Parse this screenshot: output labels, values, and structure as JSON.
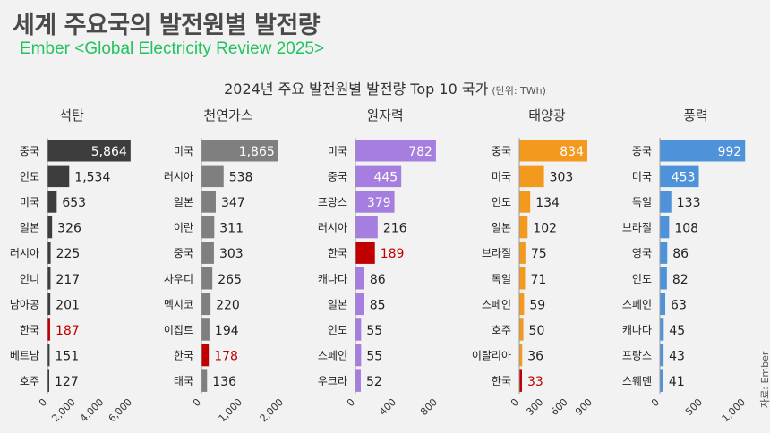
{
  "header": {
    "title": "세계 주요국의 발전원별 발전량",
    "subtitle": "Ember <Global Electricity Review 2025>",
    "chart_title": "2024년 주요 발전원별 발전량 Top 10 국가",
    "unit": "(단위: TWh)",
    "source": "자료: Ember"
  },
  "colors": {
    "coal": "#3d3d3d",
    "gas": "#7f7f7f",
    "nuclear": "#a67ee0",
    "solar": "#f39a1e",
    "wind": "#4e92d9",
    "korea": "#c00000"
  },
  "chart_data": [
    {
      "type": "bar",
      "title": "석탄",
      "categories": [
        "중국",
        "인도",
        "미국",
        "일본",
        "러시아",
        "인니",
        "남아공",
        "한국",
        "베트남",
        "호주"
      ],
      "values": [
        5864,
        1534,
        653,
        326,
        225,
        217,
        201,
        187,
        151,
        127
      ],
      "labels": [
        "5,864",
        "1,534",
        "653",
        "326",
        "225",
        "217",
        "201",
        "187",
        "151",
        "127"
      ],
      "xlim": [
        0,
        6000
      ],
      "ticks": [
        0,
        2000,
        4000,
        6000
      ],
      "tick_labels": [
        "0",
        "2,000",
        "4,000",
        "6,000"
      ],
      "highlight": "한국",
      "color_key": "coal"
    },
    {
      "type": "bar",
      "title": "천연가스",
      "categories": [
        "미국",
        "러시아",
        "일본",
        "이란",
        "중국",
        "사우디",
        "멕시코",
        "이집트",
        "한국",
        "태국"
      ],
      "values": [
        1865,
        538,
        347,
        311,
        303,
        265,
        220,
        194,
        178,
        136
      ],
      "labels": [
        "1,865",
        "538",
        "347",
        "311",
        "303",
        "265",
        "220",
        "194",
        "178",
        "136"
      ],
      "xlim": [
        0,
        2000
      ],
      "ticks": [
        0,
        1000,
        2000
      ],
      "tick_labels": [
        "0",
        "1,000",
        "2,000"
      ],
      "highlight": "한국",
      "color_key": "gas"
    },
    {
      "type": "bar",
      "title": "원자력",
      "categories": [
        "미국",
        "중국",
        "프랑스",
        "러시아",
        "한국",
        "캐나다",
        "일본",
        "인도",
        "스페인",
        "우크라"
      ],
      "values": [
        782,
        445,
        379,
        216,
        189,
        86,
        85,
        55,
        55,
        52
      ],
      "labels": [
        "782",
        "445",
        "379",
        "216",
        "189",
        "86",
        "85",
        "55",
        "55",
        "52"
      ],
      "xlim": [
        0,
        800
      ],
      "ticks": [
        0,
        400,
        800
      ],
      "tick_labels": [
        "0",
        "400",
        "800"
      ],
      "highlight": "한국",
      "color_key": "nuclear"
    },
    {
      "type": "bar",
      "title": "태양광",
      "categories": [
        "중국",
        "미국",
        "인도",
        "일본",
        "브라질",
        "독일",
        "스페인",
        "호주",
        "이탈리아",
        "한국"
      ],
      "values": [
        834,
        303,
        134,
        102,
        75,
        71,
        59,
        50,
        36,
        33
      ],
      "labels": [
        "834",
        "303",
        "134",
        "102",
        "75",
        "71",
        "59",
        "50",
        "36",
        "33"
      ],
      "xlim": [
        0,
        900
      ],
      "ticks": [
        0,
        300,
        600,
        900
      ],
      "tick_labels": [
        "0",
        "300",
        "600",
        "900"
      ],
      "highlight": "한국",
      "color_key": "solar"
    },
    {
      "type": "bar",
      "title": "풍력",
      "categories": [
        "중국",
        "미국",
        "독일",
        "브라질",
        "영국",
        "인도",
        "스페인",
        "캐나다",
        "프랑스",
        "스웨덴"
      ],
      "values": [
        992,
        453,
        133,
        108,
        86,
        82,
        63,
        45,
        43,
        41
      ],
      "labels": [
        "992",
        "453",
        "133",
        "108",
        "86",
        "82",
        "63",
        "45",
        "43",
        "41"
      ],
      "xlim": [
        0,
        1000
      ],
      "ticks": [
        0,
        500,
        1000
      ],
      "tick_labels": [
        "0",
        "500",
        "1,000"
      ],
      "highlight": "한국",
      "color_key": "wind"
    }
  ]
}
